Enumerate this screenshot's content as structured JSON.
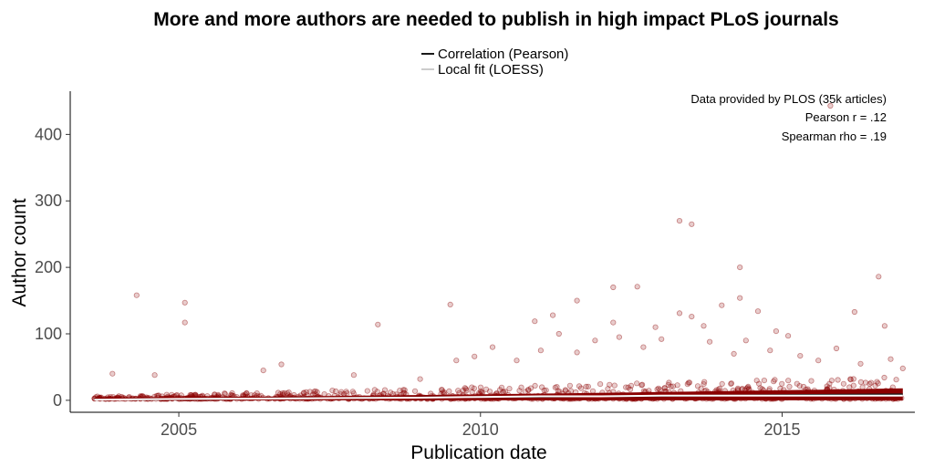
{
  "chart_data": {
    "type": "scatter",
    "title": "More and more authors are needed to publish in high impact PLoS journals",
    "xlabel": "Publication date",
    "ylabel": "Author count",
    "xlim": [
      2003.2,
      2017.2
    ],
    "ylim": [
      -18,
      465
    ],
    "x_ticks": [
      2005,
      2010,
      2015
    ],
    "y_ticks": [
      0,
      100,
      200,
      300,
      400
    ],
    "grid": false,
    "legend_position": "top",
    "legend": [
      {
        "label": "Correlation (Pearson)",
        "color": "#1a1a1a"
      },
      {
        "label": "Local fit (LOESS)",
        "color": "#cccccc"
      }
    ],
    "annotations": [
      "Data provided by PLOS (35k articles)",
      "Pearson r = .12",
      "Spearman rho = .19"
    ],
    "point_color": "#8b0000",
    "points": [
      [
        2004.3,
        158
      ],
      [
        2005.1,
        147
      ],
      [
        2005.1,
        117
      ],
      [
        2008.3,
        114
      ],
      [
        2009.5,
        144
      ],
      [
        2010.9,
        119
      ],
      [
        2011.2,
        128
      ],
      [
        2011.6,
        150
      ],
      [
        2012.2,
        170
      ],
      [
        2012.2,
        117
      ],
      [
        2012.6,
        171
      ],
      [
        2012.9,
        110
      ],
      [
        2013.3,
        270
      ],
      [
        2013.5,
        265
      ],
      [
        2013.3,
        131
      ],
      [
        2013.5,
        126
      ],
      [
        2013.7,
        112
      ],
      [
        2014.0,
        143
      ],
      [
        2014.3,
        200
      ],
      [
        2014.3,
        154
      ],
      [
        2014.6,
        134
      ],
      [
        2014.9,
        104
      ],
      [
        2015.1,
        97
      ],
      [
        2015.8,
        443
      ],
      [
        2016.2,
        133
      ],
      [
        2016.6,
        186
      ],
      [
        2016.7,
        112
      ],
      [
        2003.9,
        40
      ],
      [
        2004.6,
        38
      ],
      [
        2006.4,
        45
      ],
      [
        2006.7,
        54
      ],
      [
        2007.9,
        38
      ],
      [
        2009.0,
        32
      ],
      [
        2009.6,
        60
      ],
      [
        2009.9,
        66
      ],
      [
        2010.2,
        80
      ],
      [
        2010.6,
        60
      ],
      [
        2011.0,
        75
      ],
      [
        2011.3,
        100
      ],
      [
        2011.6,
        72
      ],
      [
        2011.9,
        90
      ],
      [
        2012.3,
        95
      ],
      [
        2012.7,
        80
      ],
      [
        2013.0,
        92
      ],
      [
        2013.8,
        88
      ],
      [
        2014.2,
        70
      ],
      [
        2014.4,
        90
      ],
      [
        2014.8,
        75
      ],
      [
        2015.3,
        67
      ],
      [
        2015.6,
        60
      ],
      [
        2015.9,
        78
      ],
      [
        2016.3,
        55
      ],
      [
        2016.8,
        62
      ],
      [
        2017.0,
        48
      ]
    ],
    "pearson_fit": {
      "x": [
        2003.6,
        2017.0
      ],
      "y": [
        1,
        9
      ]
    },
    "loess_fit": {
      "x": [
        2003.6,
        2005.0,
        2007.0,
        2009.0,
        2010.0,
        2011.0,
        2012.0,
        2013.0,
        2014.0,
        2015.0,
        2016.0,
        2017.0
      ],
      "y": [
        1,
        2,
        3,
        4,
        5,
        6,
        6,
        7,
        7,
        7,
        7,
        7
      ]
    }
  }
}
